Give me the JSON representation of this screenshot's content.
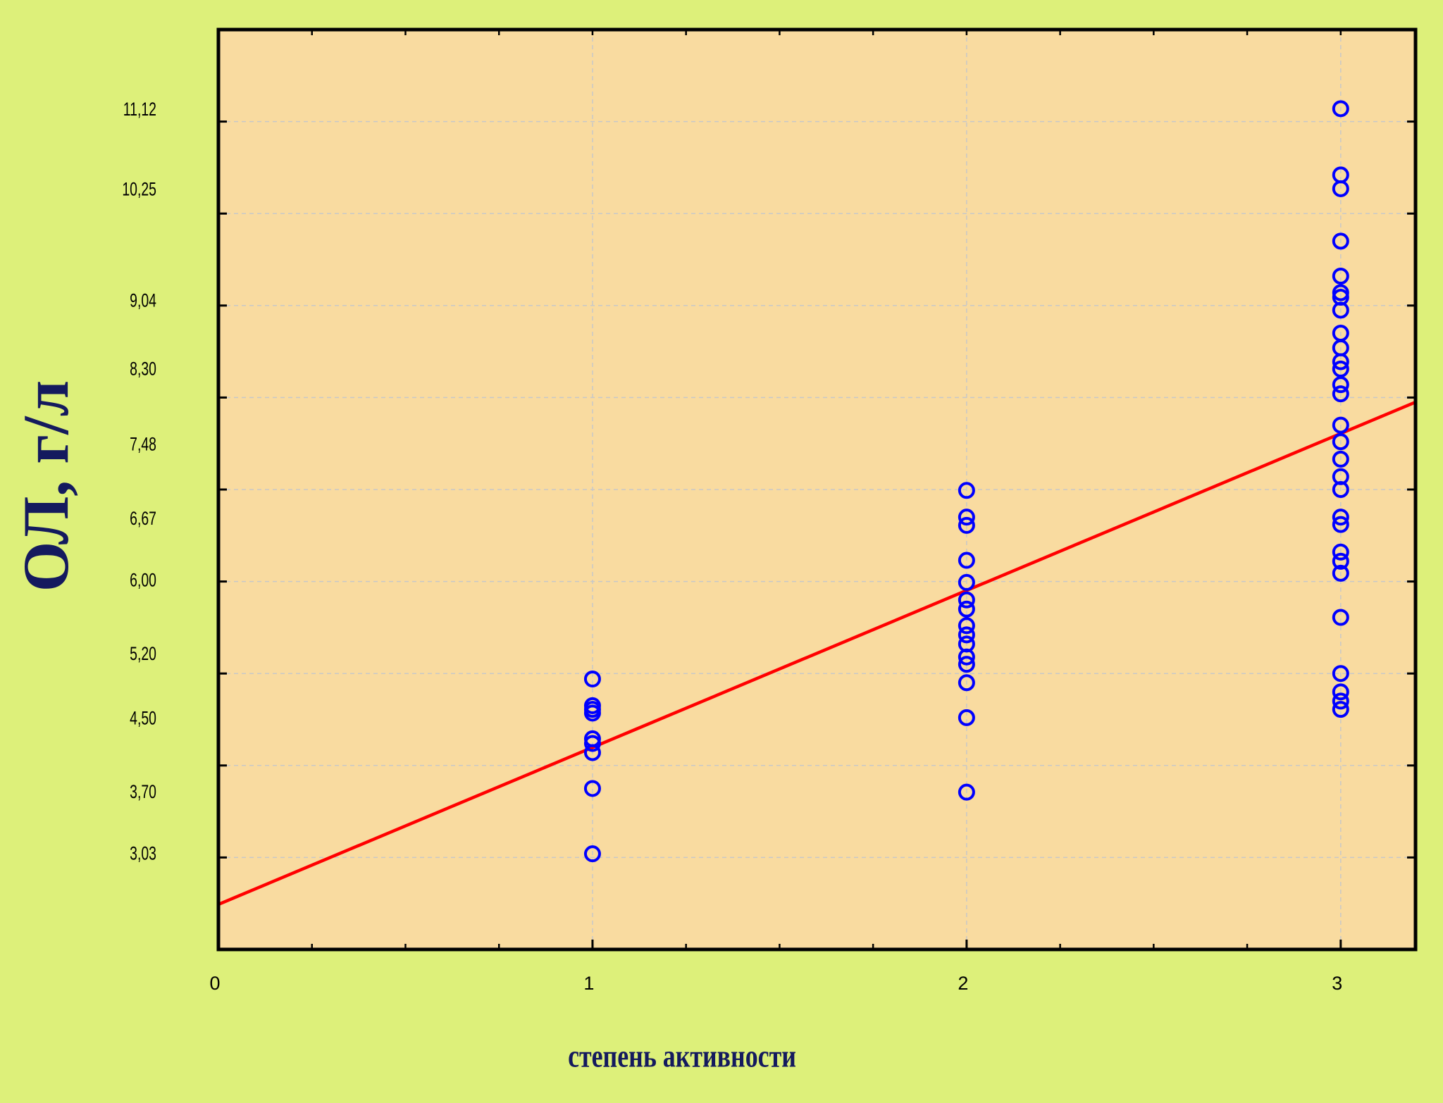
{
  "chart_data": {
    "type": "scatter",
    "x_label": "степень активности",
    "y_label": "ОЛ, г/л",
    "x": [
      1,
      1,
      1,
      1,
      1,
      1,
      1,
      1,
      1,
      2,
      2,
      2,
      2,
      2,
      2,
      2,
      2,
      2,
      2,
      2,
      2,
      2,
      2,
      2,
      3,
      3,
      3,
      3,
      3,
      3,
      3,
      3,
      3,
      3,
      3,
      3,
      3,
      3,
      3,
      3,
      3,
      3,
      3,
      3,
      3,
      3,
      3,
      3,
      3,
      3,
      3,
      3,
      3
    ],
    "y": [
      4.94,
      4.65,
      4.61,
      4.57,
      4.29,
      4.24,
      4.14,
      3.75,
      3.04,
      6.99,
      6.7,
      6.61,
      6.23,
      5.99,
      5.8,
      5.7,
      5.52,
      5.42,
      5.32,
      5.18,
      5.1,
      4.9,
      4.52,
      3.71,
      11.14,
      10.42,
      10.27,
      9.7,
      9.32,
      9.14,
      9.09,
      8.95,
      8.7,
      8.54,
      8.39,
      8.31,
      8.14,
      8.04,
      7.7,
      7.52,
      7.33,
      7.14,
      7.0,
      6.7,
      6.62,
      6.32,
      6.22,
      6.09,
      5.61,
      5.0,
      4.8,
      4.7,
      4.61
    ],
    "color": "#0000ff",
    "fit_line": {
      "x": [
        0,
        3.2
      ],
      "y": [
        2.49,
        7.95
      ],
      "color": "#ff0000"
    },
    "xlim": [
      0,
      3.2
    ],
    "xticks": [
      0,
      1,
      2,
      3
    ],
    "x_minor_step": 0.25,
    "ylim": [
      2,
      12
    ],
    "yticks": [
      {
        "value": 11.12,
        "label": "11,12"
      },
      {
        "value": 10.25,
        "label": "10,25"
      },
      {
        "value": 9.04,
        "label": "9,04"
      },
      {
        "value": 8.3,
        "label": "8,30"
      },
      {
        "value": 7.48,
        "label": "7,48"
      },
      {
        "value": 6.67,
        "label": "6,67"
      },
      {
        "value": 6.0,
        "label": "6,00"
      },
      {
        "value": 5.2,
        "label": "5,20"
      },
      {
        "value": 4.5,
        "label": "4,50"
      },
      {
        "value": 3.7,
        "label": "3,70"
      },
      {
        "value": 3.03,
        "label": "3,03"
      }
    ],
    "y_grid": [
      3,
      4,
      5,
      6,
      7,
      8,
      9,
      10,
      11
    ],
    "grid": true
  }
}
